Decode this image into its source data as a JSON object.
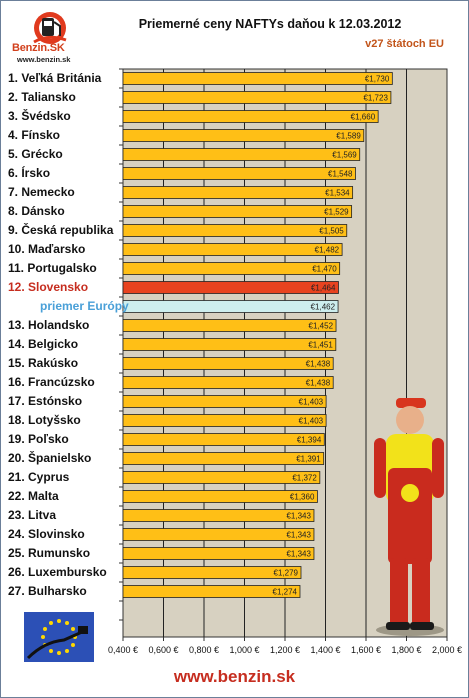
{
  "header": {
    "title": "Priemerné ceny NAFTYs daňou k 12.03.2012",
    "subtitle": "v27 štátoch EU",
    "logo_text": "Benzin.SK",
    "logo_url": "www.benzin.sk"
  },
  "footer": {
    "url": "www.benzin.sk"
  },
  "colors": {
    "bar": "#ffbf16",
    "highlight": "#e8431f",
    "average": "#cdeeee",
    "plot_bg": "#d7d1c1",
    "grid": "#222222"
  },
  "chart_data": {
    "type": "bar",
    "orientation": "horizontal",
    "title": "Priemerné ceny NAFTYs daňou k 12.03.2012",
    "subtitle": "v27 štátoch EU",
    "xlim": [
      0.4,
      2.0
    ],
    "ticks": [
      "0,400 €",
      "0,600 €",
      "0,800 €",
      "1,000 €",
      "1,200 €",
      "1,400 €",
      "1,600 €",
      "1,800 €",
      "2,000 €"
    ],
    "tick_values": [
      0.4,
      0.6,
      0.8,
      1.0,
      1.2,
      1.4,
      1.6,
      1.8,
      2.0
    ],
    "grid": true,
    "categories": [
      "1. Veľká Británia",
      "2. Taliansko",
      "3. Švédsko",
      "4. Fínsko",
      "5. Grécko",
      "6. Írsko",
      "7. Nemecko",
      "8. Dánsko",
      "9. Česká republika",
      "10. Maďarsko",
      "11. Portugalsko",
      "12. Slovensko",
      "priemer Európy",
      "13. Holandsko",
      "14. Belgicko",
      "15. Rakúsko",
      "16. Francúzsko",
      "17. Estónsko",
      "18. Lotyšsko",
      "19. Poľsko",
      "20. Španielsko",
      "21. Cyprus",
      "22. Malta",
      "23. Litva",
      "24. Slovinsko",
      "25. Rumunsko",
      "26. Luxembursko",
      "27. Bulharsko"
    ],
    "values": [
      1.73,
      1.723,
      1.66,
      1.589,
      1.569,
      1.548,
      1.534,
      1.529,
      1.505,
      1.482,
      1.47,
      1.464,
      1.462,
      1.452,
      1.451,
      1.438,
      1.438,
      1.403,
      1.403,
      1.394,
      1.391,
      1.372,
      1.36,
      1.343,
      1.343,
      1.343,
      1.279,
      1.274
    ],
    "value_labels": [
      "€1,730",
      "€1,723",
      "€1,660",
      "€1,589",
      "€1,569",
      "€1,548",
      "€1,534",
      "€1,529",
      "€1,505",
      "€1,482",
      "€1,470",
      "€1,464",
      "€1,462",
      "€1,452",
      "€1,451",
      "€1,438",
      "€1,438",
      "€1,403",
      "€1,403",
      "€1,394",
      "€1,391",
      "€1,372",
      "€1,360",
      "€1,343",
      "€1,343",
      "€1,343",
      "€1,279",
      "€1,274"
    ],
    "highlight_index": 11,
    "average_index": 12
  }
}
